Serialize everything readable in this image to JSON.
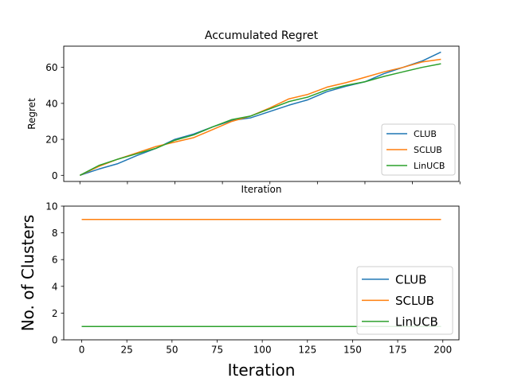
{
  "chart_data": [
    {
      "type": "line",
      "title": "Accumulated Regret",
      "xlabel": "Iteration",
      "ylabel": "Regret",
      "xlim": [
        -8.5,
        199.5
      ],
      "ylim": [
        -3.4,
        71.8
      ],
      "xticks": [
        0,
        25,
        50,
        75,
        100,
        125,
        150,
        175,
        200
      ],
      "show_xtick_labels": false,
      "yticks": [
        0,
        20,
        40,
        60
      ],
      "ytick_labels": [
        "0",
        "20",
        "40",
        "60"
      ],
      "grid": false,
      "legend": "lower-right",
      "x": [
        0,
        10,
        20,
        30,
        40,
        50,
        60,
        70,
        80,
        90,
        100,
        110,
        120,
        130,
        140,
        150,
        160,
        170,
        180,
        190
      ],
      "series": [
        {
          "name": "CLUB",
          "color": "#1f77b4",
          "values": [
            0,
            3.5,
            6.5,
            11,
            15,
            20,
            23,
            27,
            30.5,
            32,
            35.5,
            39,
            42,
            46.5,
            49.5,
            52,
            56.5,
            60,
            63.5,
            68.5
          ]
        },
        {
          "name": "SCLUB",
          "color": "#ff7f0e",
          "values": [
            0,
            5,
            9,
            12.5,
            16,
            18.5,
            21,
            25.5,
            30,
            33,
            37.5,
            42.5,
            45,
            49,
            51.5,
            54.5,
            57.5,
            60,
            63,
            64.5
          ]
        },
        {
          "name": "LinUCB",
          "color": "#2ca02c",
          "values": [
            0,
            5.5,
            9,
            12,
            15,
            19.5,
            22.5,
            27,
            31,
            33,
            37,
            41,
            43.5,
            47.5,
            50,
            52,
            55,
            57.5,
            60,
            62
          ]
        }
      ]
    },
    {
      "type": "line",
      "title": "",
      "xlabel": "Iteration",
      "ylabel": "No. of Clusters",
      "xlim": [
        -9.95,
        208.95
      ],
      "ylim": [
        0,
        10
      ],
      "xticks": [
        0,
        25,
        50,
        75,
        100,
        125,
        150,
        175,
        200
      ],
      "xtick_labels": [
        "0",
        "25",
        "50",
        "75",
        "100",
        "125",
        "150",
        "175",
        "200"
      ],
      "yticks": [
        0,
        2,
        4,
        6,
        8,
        10
      ],
      "ytick_labels": [
        "0",
        "2",
        "4",
        "6",
        "8",
        "10"
      ],
      "grid": false,
      "legend": "lower-right",
      "x": [
        0,
        199
      ],
      "series": [
        {
          "name": "CLUB",
          "color": "#1f77b4",
          "values": [
            1,
            1
          ]
        },
        {
          "name": "SCLUB",
          "color": "#ff7f0e",
          "values": [
            9,
            9
          ]
        },
        {
          "name": "LinUCB",
          "color": "#2ca02c",
          "values": [
            1,
            1
          ]
        }
      ]
    }
  ]
}
